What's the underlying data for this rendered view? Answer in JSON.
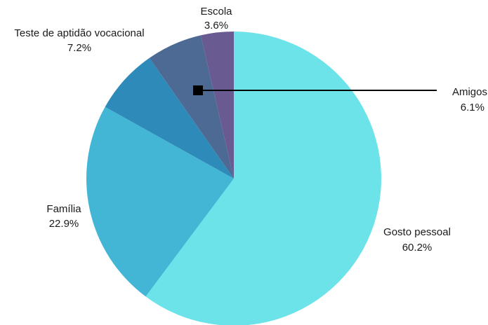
{
  "chart_data": {
    "type": "pie",
    "slices": [
      {
        "label": "Gosto pessoal",
        "value": 60.2,
        "value_label": "60.2%",
        "color": "#6be3e9"
      },
      {
        "label": "Família",
        "value": 22.9,
        "value_label": "22.9%",
        "color": "#43b6d5"
      },
      {
        "label": "Teste de aptidão vocacional",
        "value": 7.2,
        "value_label": "7.2%",
        "color": "#2e8ab9"
      },
      {
        "label": "Amigos",
        "value": 6.1,
        "value_label": "6.1%",
        "color": "#4d6a95"
      },
      {
        "label": "Escola",
        "value": 3.6,
        "value_label": "3.6%",
        "color": "#6a5a92"
      }
    ],
    "start": "12 o'clock",
    "direction": "clockwise",
    "legend": "none"
  }
}
